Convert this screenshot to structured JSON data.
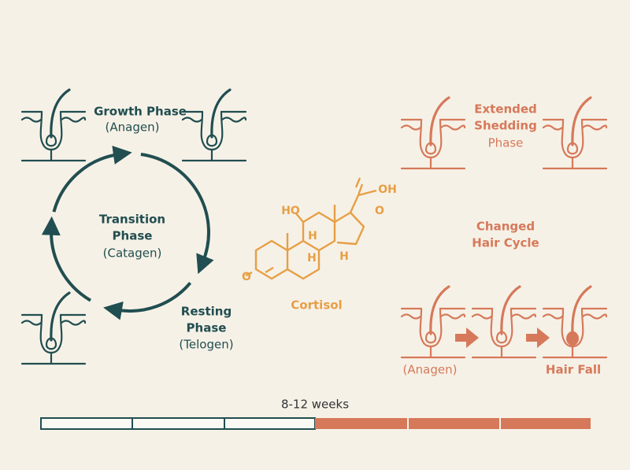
{
  "left_cycle": {
    "growth": {
      "title": "Growth Phase",
      "subtitle": "(Anagen)"
    },
    "transition": {
      "title_lines": [
        "Transition",
        "Phase"
      ],
      "subtitle": "(Catagen)"
    },
    "resting": {
      "title_lines": [
        "Resting",
        "Phase"
      ],
      "subtitle": "(Telogen)"
    }
  },
  "molecule": {
    "name": "Cortisol",
    "atom_labels": [
      "HO",
      "O",
      "OH",
      "O",
      "H",
      "H",
      "H"
    ]
  },
  "right_side": {
    "extended": {
      "title_lines": [
        "Extended",
        "Shedding"
      ],
      "subtitle": "Phase"
    },
    "changed": {
      "title_lines": [
        "Changed",
        "Hair Cycle"
      ]
    },
    "sequence": {
      "start": "(Anagen)",
      "end": "Hair Fall"
    }
  },
  "timeline": {
    "label": "8-12 weeks"
  }
}
